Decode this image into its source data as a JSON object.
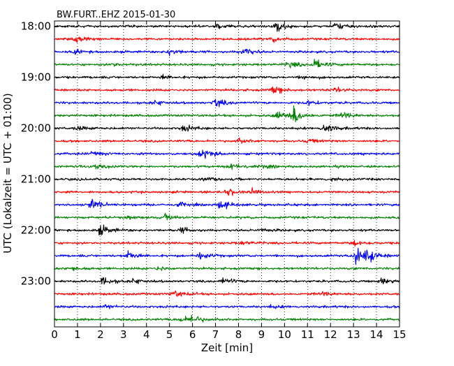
{
  "chart_data": {
    "type": "line",
    "title": "BW.FURT..EHZ 2015-01-30",
    "xlabel": "Zeit  [min]",
    "ylabel": "UTC (Lokalzeit = UTC + 01:00)",
    "xlim": [
      0,
      15
    ],
    "x_ticks": [
      0,
      1,
      2,
      3,
      4,
      5,
      6,
      7,
      8,
      9,
      10,
      11,
      12,
      13,
      14,
      15
    ],
    "y_tick_labels": [
      "18:00",
      "19:00",
      "20:00",
      "21:00",
      "22:00",
      "23:00"
    ],
    "trace_interval_minutes": 15,
    "grid": "vertical dotted at each minute",
    "color_cycle": [
      "#000000",
      "#ff0000",
      "#0000ff",
      "#008000"
    ],
    "traces": [
      {
        "start": "18:00",
        "events": [
          {
            "t": 9.6,
            "amp": 1.4
          },
          {
            "t": 12.2,
            "amp": 1.0
          },
          {
            "t": 7.0,
            "amp": 0.6
          }
        ]
      },
      {
        "start": "18:15",
        "events": [
          {
            "t": 0.9,
            "amp": 0.8
          },
          {
            "t": 9.5,
            "amp": 0.6
          }
        ]
      },
      {
        "start": "18:30",
        "events": [
          {
            "t": 5.0,
            "amp": 0.9
          },
          {
            "t": 8.2,
            "amp": 1.1
          },
          {
            "t": 0.9,
            "amp": 0.5
          }
        ]
      },
      {
        "start": "18:45",
        "events": [
          {
            "t": 10.2,
            "amp": 0.9
          },
          {
            "t": 11.3,
            "amp": 1.2
          },
          {
            "t": 2.5,
            "amp": 0.5
          }
        ]
      },
      {
        "start": "19:00",
        "events": [
          {
            "t": 4.7,
            "amp": 0.6
          },
          {
            "t": 10.8,
            "amp": 0.5
          }
        ]
      },
      {
        "start": "19:15",
        "events": [
          {
            "t": 9.5,
            "amp": 1.0
          },
          {
            "t": 12.2,
            "amp": 0.6
          }
        ]
      },
      {
        "start": "19:30",
        "events": [
          {
            "t": 7.0,
            "amp": 1.2
          },
          {
            "t": 4.3,
            "amp": 0.6
          },
          {
            "t": 11.0,
            "amp": 0.6
          }
        ]
      },
      {
        "start": "19:45",
        "events": [
          {
            "t": 9.7,
            "amp": 1.2
          },
          {
            "t": 10.4,
            "amp": 2.2
          },
          {
            "t": 12.5,
            "amp": 1.0
          }
        ]
      },
      {
        "start": "20:00",
        "events": [
          {
            "t": 5.6,
            "amp": 0.9
          },
          {
            "t": 11.7,
            "amp": 1.3
          },
          {
            "t": 1.0,
            "amp": 0.5
          }
        ]
      },
      {
        "start": "20:15",
        "events": [
          {
            "t": 8.0,
            "amp": 0.6
          },
          {
            "t": 11.0,
            "amp": 0.5
          }
        ]
      },
      {
        "start": "20:30",
        "events": [
          {
            "t": 6.4,
            "amp": 1.5
          },
          {
            "t": 1.7,
            "amp": 0.5
          }
        ]
      },
      {
        "start": "20:45",
        "events": [
          {
            "t": 7.7,
            "amp": 0.8
          },
          {
            "t": 1.8,
            "amp": 0.6
          },
          {
            "t": 9.0,
            "amp": 0.4
          }
        ]
      },
      {
        "start": "21:00",
        "events": [
          {
            "t": 6.6,
            "amp": 0.5
          },
          {
            "t": 12.0,
            "amp": 0.5
          }
        ]
      },
      {
        "start": "21:15",
        "events": [
          {
            "t": 7.5,
            "amp": 0.9
          },
          {
            "t": 8.6,
            "amp": 0.6
          }
        ]
      },
      {
        "start": "21:30",
        "events": [
          {
            "t": 1.6,
            "amp": 1.4
          },
          {
            "t": 7.2,
            "amp": 1.3
          },
          {
            "t": 5.4,
            "amp": 0.6
          }
        ]
      },
      {
        "start": "21:45",
        "events": [
          {
            "t": 4.8,
            "amp": 0.8
          },
          {
            "t": 3.2,
            "amp": 0.4
          }
        ]
      },
      {
        "start": "22:00",
        "events": [
          {
            "t": 2.0,
            "amp": 1.4
          },
          {
            "t": 5.5,
            "amp": 0.7
          },
          {
            "t": 9.0,
            "amp": 0.4
          }
        ]
      },
      {
        "start": "22:15",
        "events": [
          {
            "t": 8.1,
            "amp": 0.5
          },
          {
            "t": 13.0,
            "amp": 0.7
          }
        ]
      },
      {
        "start": "22:30",
        "events": [
          {
            "t": 3.2,
            "amp": 1.2
          },
          {
            "t": 6.3,
            "amp": 1.0
          },
          {
            "t": 13.1,
            "amp": 2.6
          },
          {
            "t": 13.6,
            "amp": 1.5
          }
        ]
      },
      {
        "start": "22:45",
        "events": [
          {
            "t": 0.8,
            "amp": 0.6
          },
          {
            "t": 4.5,
            "amp": 0.5
          }
        ]
      },
      {
        "start": "23:00",
        "events": [
          {
            "t": 2.1,
            "amp": 1.0
          },
          {
            "t": 7.3,
            "amp": 0.9
          },
          {
            "t": 14.2,
            "amp": 0.9
          },
          {
            "t": 3.4,
            "amp": 0.6
          }
        ]
      },
      {
        "start": "23:15",
        "events": [
          {
            "t": 5.2,
            "amp": 1.0
          },
          {
            "t": 11.6,
            "amp": 0.6
          }
        ]
      },
      {
        "start": "23:30",
        "events": [
          {
            "t": 2.2,
            "amp": 0.5
          },
          {
            "t": 9.4,
            "amp": 0.3
          }
        ]
      },
      {
        "start": "23:45",
        "events": [
          {
            "t": 5.9,
            "amp": 1.3
          },
          {
            "t": 5.4,
            "amp": 0.7
          }
        ]
      }
    ]
  }
}
